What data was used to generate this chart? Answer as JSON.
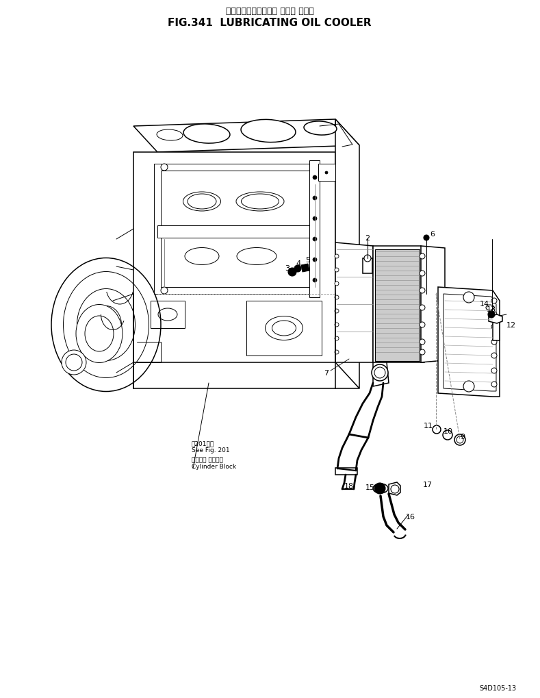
{
  "title_japanese": "ルーブリケーティング オイル クーラ",
  "title_english": "FIG.341  LUBRICATING OIL COOLER",
  "background_color": "#ffffff",
  "line_color": "#000000",
  "fig_width": 7.89,
  "fig_height": 10.2,
  "dpi": 100,
  "bottom_label": "S4D105-13",
  "caption_jp1": "図201参照",
  "caption_en1": "See Fig. 201",
  "caption_jp2": "シリンダ ブロック",
  "caption_en2": "Cylinder Block"
}
